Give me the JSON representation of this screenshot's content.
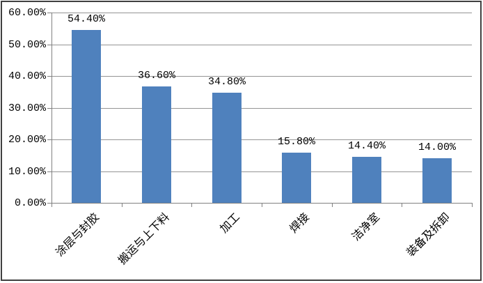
{
  "chart_data": {
    "type": "bar",
    "title": "",
    "xlabel": "",
    "ylabel": "",
    "categories": [
      "涂层与封胶",
      "搬运与上下料",
      "加工",
      "焊接",
      "洁净室",
      "装备及拆卸"
    ],
    "values": [
      54.4,
      36.6,
      34.8,
      15.8,
      14.4,
      14.0
    ],
    "value_labels": [
      "54.40%",
      "36.60%",
      "34.80%",
      "15.80%",
      "14.40%",
      "14.00%"
    ],
    "y_ticks": [
      "60.00%",
      "50.00%",
      "40.00%",
      "30.00%",
      "20.00%",
      "10.00%",
      "0.00%"
    ],
    "ylim": [
      0,
      60
    ],
    "y_tick_step": 10,
    "grid": true,
    "legend": false,
    "colors": {
      "bar_fill": "#4F81BD",
      "gridline": "#949494",
      "axis": "#808080",
      "chart_border": "#404040",
      "background": "#FFFFFF",
      "text": "#000000"
    }
  }
}
